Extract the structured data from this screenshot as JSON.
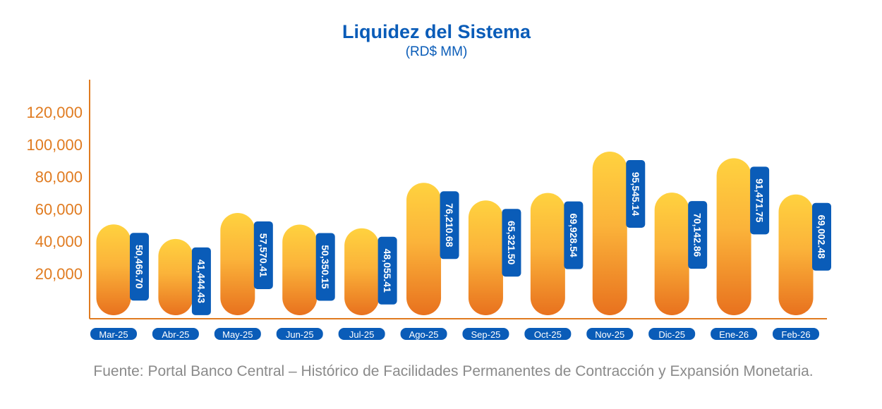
{
  "chart_data": {
    "type": "bar",
    "title": "Liquidez del Sistema",
    "subtitle": "(RD$ MM)",
    "categories": [
      "Mar-25",
      "Abr-25",
      "May-25",
      "Jun-25",
      "Jul-25",
      "Ago-25",
      "Sep-25",
      "Oct-25",
      "Nov-25",
      "Dic-25",
      "Ene-26",
      "Feb-26"
    ],
    "values": [
      50466.7,
      41444.43,
      57570.41,
      50350.15,
      48055.41,
      76210.68,
      65321.5,
      69928.54,
      95545.14,
      70142.86,
      91471.75,
      69002.48
    ],
    "value_labels": [
      "50,466.70",
      "41,444.43",
      "57,570.41",
      "50,350.15",
      "48,055.41",
      "76,210.68",
      "65,321.50",
      "69,928.54",
      "95,545.14",
      "70,142.86",
      "91,471.75",
      "69,002.48"
    ],
    "y_ticks": [
      20000,
      40000,
      60000,
      80000,
      100000,
      120000
    ],
    "y_tick_labels": [
      "20,000",
      "40,000",
      "60,000",
      "80,000",
      "100,000",
      "120,000"
    ],
    "ylim": [
      0,
      120000
    ],
    "grid": false,
    "legend": "none",
    "colors": {
      "title": "#0a5cb8",
      "axis": "#e07b20",
      "bar_top": "#ffd23f",
      "bar_bottom": "#e8711e",
      "label_box": "#0a5cb8",
      "label_text": "#ffffff"
    }
  },
  "source": "Fuente: Portal Banco Central – Histórico de Facilidades Permanentes de Contracción y Expansión Monetaria."
}
